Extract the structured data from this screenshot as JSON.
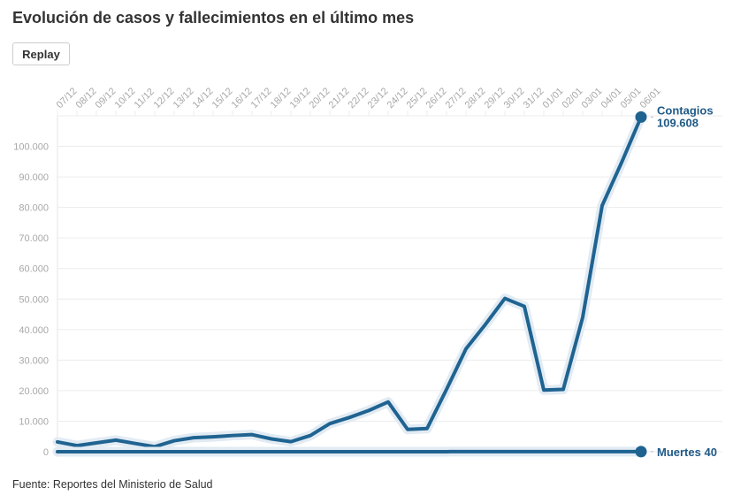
{
  "title": "Evolución de casos y fallecimientos en el último mes",
  "replay_label": "Replay",
  "source": "Fuente: Reportes del Ministerio de Salud",
  "colors": {
    "line": "#1f6391",
    "halo": "#e2ebf3",
    "grid": "#ececec",
    "tick": "#a8a8a8",
    "label": "#1f5a87"
  },
  "chart_data": {
    "type": "line",
    "title": "Evolución de casos y fallecimientos en el último mes",
    "xlabel": "",
    "ylabel": "",
    "ylim": [
      0,
      110000
    ],
    "yticks": [
      "0",
      "10.000",
      "20.000",
      "30.000",
      "40.000",
      "50.000",
      "60.000",
      "70.000",
      "80.000",
      "90.000",
      "100.000"
    ],
    "grid": true,
    "categories": [
      "07/12",
      "08/12",
      "09/12",
      "10/12",
      "11/12",
      "12/12",
      "13/12",
      "14/12",
      "15/12",
      "16/12",
      "17/12",
      "18/12",
      "19/12",
      "20/12",
      "21/12",
      "22/12",
      "23/12",
      "24/12",
      "25/12",
      "26/12",
      "27/12",
      "28/12",
      "29/12",
      "30/12",
      "31/12",
      "01/01",
      "02/01",
      "03/01",
      "04/01",
      "05/01",
      "06/01"
    ],
    "series": [
      {
        "name": "Contagios",
        "end_label": "109.608",
        "values": [
          3200,
          2000,
          2900,
          3800,
          2700,
          1650,
          3600,
          4600,
          4900,
          5300,
          5600,
          4200,
          3300,
          5300,
          9200,
          11200,
          13500,
          16300,
          7300,
          7600,
          20400,
          33700,
          41700,
          50200,
          47600,
          20200,
          20400,
          44000,
          80600,
          94700,
          109608
        ]
      },
      {
        "name": "Muertes",
        "end_label": "40",
        "values": [
          10,
          12,
          10,
          11,
          9,
          10,
          12,
          13,
          12,
          14,
          13,
          11,
          10,
          12,
          14,
          15,
          16,
          18,
          14,
          15,
          18,
          20,
          22,
          24,
          25,
          20,
          22,
          28,
          32,
          36,
          40
        ]
      }
    ]
  }
}
